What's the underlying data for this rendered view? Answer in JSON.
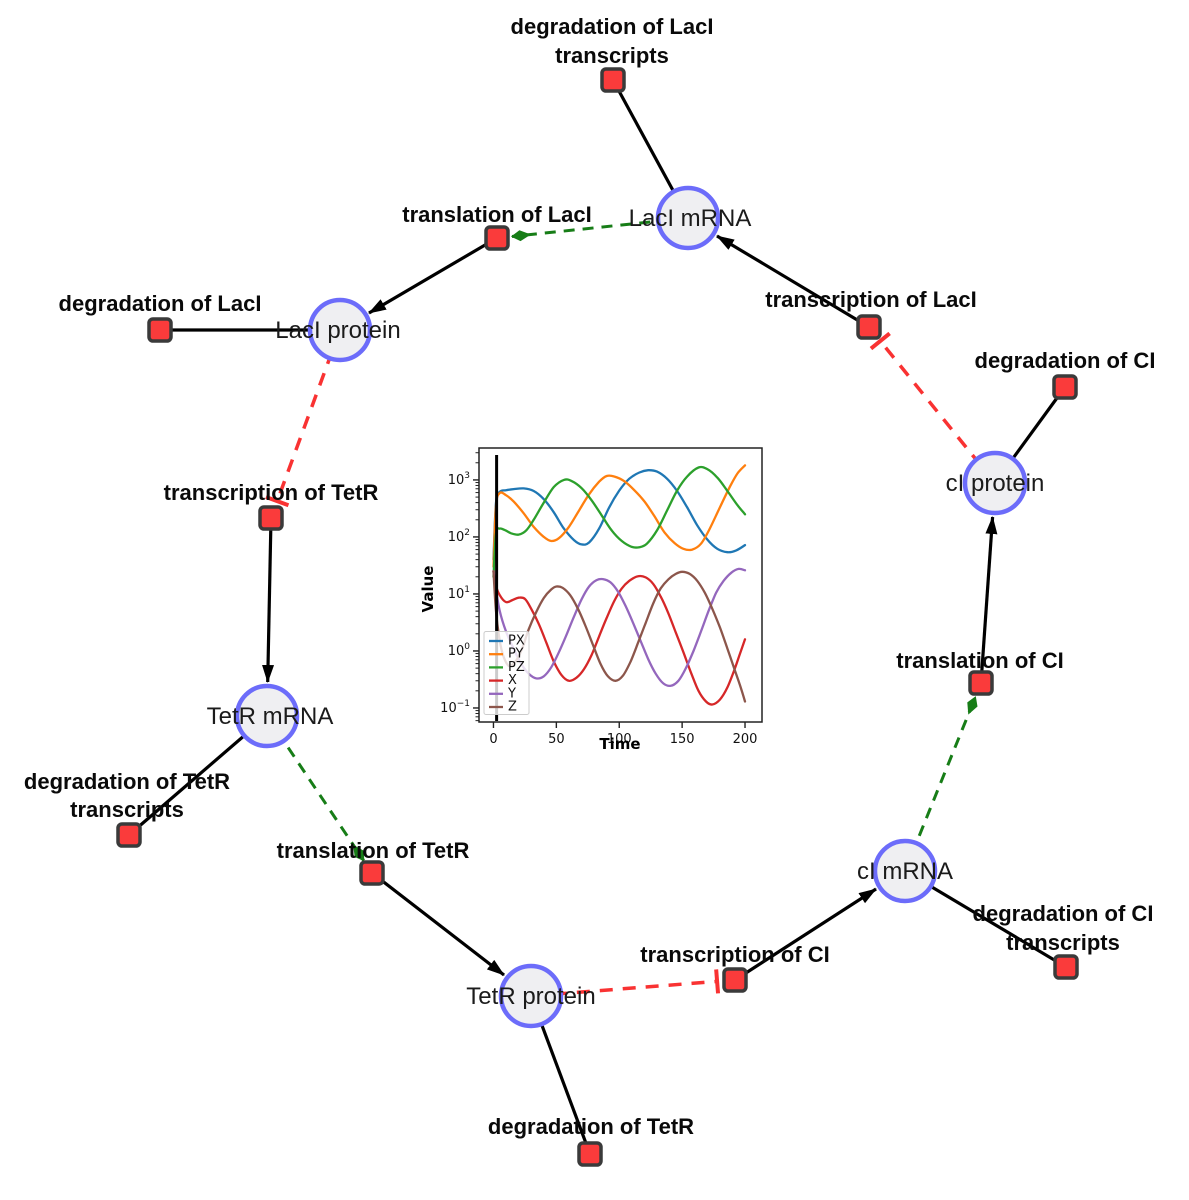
{
  "figure": {
    "background": "#ffffff",
    "colors": {
      "species_fill": "#efeff2",
      "species_stroke": "#6c6cfa",
      "reaction_fill": "#fa3b3b",
      "reaction_stroke": "#3a3a3a",
      "edge_reaction": "#000000",
      "edge_activation": "#177d17",
      "edge_inhibition": "#f93232"
    }
  },
  "network": {
    "species": [
      {
        "label": "LacI mRNA"
      },
      {
        "label": "LacI protein"
      },
      {
        "label": "TetR mRNA"
      },
      {
        "label": "TetR protein"
      },
      {
        "label": "cI mRNA"
      },
      {
        "label": "cI protein"
      }
    ],
    "reactions": [
      {
        "lines": [
          "degradation of LacI",
          "transcripts"
        ]
      },
      {
        "lines": [
          "translation of LacI"
        ]
      },
      {
        "lines": [
          "transcription of LacI"
        ]
      },
      {
        "lines": [
          "degradation of LacI"
        ]
      },
      {
        "lines": [
          "degradation of CI"
        ]
      },
      {
        "lines": [
          "transcription of TetR"
        ]
      },
      {
        "lines": [
          "degradation of TetR",
          "transcripts"
        ]
      },
      {
        "lines": [
          "translation of TetR"
        ]
      },
      {
        "lines": [
          "degradation of TetR"
        ]
      },
      {
        "lines": [
          "transcription of CI"
        ]
      },
      {
        "lines": [
          "degradation of CI",
          "transcripts"
        ]
      },
      {
        "lines": [
          "translation of CI"
        ]
      }
    ]
  },
  "chart_data": {
    "type": "line",
    "title": "",
    "xlabel": "Time",
    "ylabel": "Value",
    "x_ticks": [
      0,
      50,
      100,
      150,
      200
    ],
    "y_scale": "log",
    "y_tick_exponents": [
      3,
      2,
      1,
      0,
      -1
    ],
    "xlim": [
      -11.5,
      213.5
    ],
    "ylog_lim": [
      -1.246,
      3.56
    ],
    "grid": false,
    "legend_position": "lower left",
    "event_line_t": 2.5,
    "series": [
      {
        "name": "PX",
        "color": "#1f77b4",
        "points": [
          [
            0,
            40
          ],
          [
            2,
            400
          ],
          [
            5,
            620
          ],
          [
            10,
            660
          ],
          [
            16,
            690
          ],
          [
            24,
            710
          ],
          [
            32,
            640
          ],
          [
            40,
            460
          ],
          [
            48,
            270
          ],
          [
            56,
            140
          ],
          [
            64,
            88
          ],
          [
            70,
            74
          ],
          [
            76,
            80
          ],
          [
            84,
            140
          ],
          [
            92,
            330
          ],
          [
            100,
            650
          ],
          [
            108,
            1050
          ],
          [
            116,
            1350
          ],
          [
            123,
            1480
          ],
          [
            130,
            1400
          ],
          [
            138,
            1050
          ],
          [
            146,
            640
          ],
          [
            154,
            330
          ],
          [
            162,
            160
          ],
          [
            170,
            90
          ],
          [
            178,
            62
          ],
          [
            186,
            54
          ],
          [
            193,
            58
          ],
          [
            200,
            72
          ]
        ]
      },
      {
        "name": "PY",
        "color": "#ff7f0e",
        "points": [
          [
            0,
            30
          ],
          [
            2,
            350
          ],
          [
            5,
            590
          ],
          [
            10,
            540
          ],
          [
            16,
            420
          ],
          [
            24,
            260
          ],
          [
            32,
            150
          ],
          [
            40,
            100
          ],
          [
            46,
            85
          ],
          [
            52,
            95
          ],
          [
            60,
            150
          ],
          [
            68,
            290
          ],
          [
            76,
            560
          ],
          [
            84,
            930
          ],
          [
            90,
            1170
          ],
          [
            96,
            1150
          ],
          [
            104,
            950
          ],
          [
            112,
            660
          ],
          [
            120,
            420
          ],
          [
            128,
            230
          ],
          [
            136,
            120
          ],
          [
            144,
            78
          ],
          [
            151,
            62
          ],
          [
            158,
            60
          ],
          [
            165,
            76
          ],
          [
            172,
            140
          ],
          [
            180,
            330
          ],
          [
            188,
            760
          ],
          [
            194,
            1300
          ],
          [
            200,
            1800
          ]
        ]
      },
      {
        "name": "PZ",
        "color": "#2ca02c",
        "points": [
          [
            0,
            20
          ],
          [
            2,
            115
          ],
          [
            5,
            140
          ],
          [
            9,
            132
          ],
          [
            14,
            116
          ],
          [
            20,
            110
          ],
          [
            26,
            130
          ],
          [
            32,
            200
          ],
          [
            40,
            400
          ],
          [
            48,
            750
          ],
          [
            56,
            1000
          ],
          [
            62,
            960
          ],
          [
            70,
            720
          ],
          [
            78,
            440
          ],
          [
            86,
            240
          ],
          [
            94,
            130
          ],
          [
            102,
            85
          ],
          [
            110,
            67
          ],
          [
            116,
            66
          ],
          [
            122,
            76
          ],
          [
            130,
            130
          ],
          [
            138,
            290
          ],
          [
            146,
            650
          ],
          [
            154,
            1150
          ],
          [
            163,
            1650
          ],
          [
            170,
            1550
          ],
          [
            178,
            1100
          ],
          [
            186,
            640
          ],
          [
            194,
            360
          ],
          [
            200,
            250
          ]
        ]
      },
      {
        "name": "X",
        "color": "#d62728",
        "points": [
          [
            0,
            25
          ],
          [
            2,
            14
          ],
          [
            5,
            9.5
          ],
          [
            10,
            7.2
          ],
          [
            15,
            7.8
          ],
          [
            20,
            8.6
          ],
          [
            25,
            8.2
          ],
          [
            30,
            5.5
          ],
          [
            36,
            3
          ],
          [
            42,
            1.4
          ],
          [
            48,
            0.65
          ],
          [
            54,
            0.38
          ],
          [
            60,
            0.3
          ],
          [
            66,
            0.34
          ],
          [
            72,
            0.48
          ],
          [
            78,
            0.85
          ],
          [
            84,
            1.8
          ],
          [
            90,
            3.8
          ],
          [
            96,
            7.5
          ],
          [
            102,
            12.5
          ],
          [
            108,
            17
          ],
          [
            115,
            20.5
          ],
          [
            121,
            19.5
          ],
          [
            127,
            15
          ],
          [
            133,
            9
          ],
          [
            139,
            4.6
          ],
          [
            145,
            2.1
          ],
          [
            151,
            0.95
          ],
          [
            157,
            0.42
          ],
          [
            163,
            0.2
          ],
          [
            169,
            0.13
          ],
          [
            174,
            0.115
          ],
          [
            180,
            0.14
          ],
          [
            186,
            0.23
          ],
          [
            192,
            0.5
          ],
          [
            196,
            0.9
          ],
          [
            200,
            1.6
          ]
        ]
      },
      {
        "name": "Y",
        "color": "#9467bd",
        "points": [
          [
            0,
            25
          ],
          [
            2,
            12
          ],
          [
            5,
            5
          ],
          [
            10,
            2.2
          ],
          [
            16,
            1.1
          ],
          [
            22,
            0.6
          ],
          [
            28,
            0.4
          ],
          [
            34,
            0.33
          ],
          [
            40,
            0.36
          ],
          [
            46,
            0.52
          ],
          [
            52,
            0.95
          ],
          [
            58,
            1.9
          ],
          [
            64,
            4
          ],
          [
            70,
            8
          ],
          [
            76,
            13.5
          ],
          [
            82,
            17.5
          ],
          [
            87,
            18.2
          ],
          [
            93,
            16
          ],
          [
            99,
            11
          ],
          [
            105,
            6.2
          ],
          [
            111,
            3.1
          ],
          [
            117,
            1.5
          ],
          [
            123,
            0.72
          ],
          [
            129,
            0.4
          ],
          [
            135,
            0.27
          ],
          [
            141,
            0.245
          ],
          [
            147,
            0.3
          ],
          [
            153,
            0.5
          ],
          [
            159,
            1
          ],
          [
            165,
            2.2
          ],
          [
            171,
            5
          ],
          [
            177,
            10.5
          ],
          [
            183,
            17
          ],
          [
            189,
            23.5
          ],
          [
            195,
            27.5
          ],
          [
            200,
            26
          ]
        ]
      },
      {
        "name": "Z",
        "color": "#8c564b",
        "points": [
          [
            0,
            25
          ],
          [
            2,
            5
          ],
          [
            5,
            1.5
          ],
          [
            8,
            0.8
          ],
          [
            12,
            0.55
          ],
          [
            16,
            0.6
          ],
          [
            20,
            0.8
          ],
          [
            24,
            1.3
          ],
          [
            28,
            2.4
          ],
          [
            34,
            4.8
          ],
          [
            40,
            8.5
          ],
          [
            46,
            12
          ],
          [
            50,
            13.5
          ],
          [
            55,
            12.8
          ],
          [
            61,
            9.5
          ],
          [
            67,
            5.6
          ],
          [
            73,
            2.8
          ],
          [
            79,
            1.3
          ],
          [
            85,
            0.6
          ],
          [
            91,
            0.36
          ],
          [
            97,
            0.3
          ],
          [
            103,
            0.37
          ],
          [
            109,
            0.65
          ],
          [
            115,
            1.4
          ],
          [
            121,
            3.1
          ],
          [
            127,
            6.8
          ],
          [
            133,
            12.5
          ],
          [
            139,
            18
          ],
          [
            145,
            22.5
          ],
          [
            150,
            24.5
          ],
          [
            156,
            22.5
          ],
          [
            162,
            17
          ],
          [
            168,
            10.5
          ],
          [
            174,
            5.5
          ],
          [
            180,
            2.6
          ],
          [
            186,
            1.1
          ],
          [
            192,
            0.45
          ],
          [
            196,
            0.25
          ],
          [
            200,
            0.13
          ]
        ]
      }
    ]
  }
}
